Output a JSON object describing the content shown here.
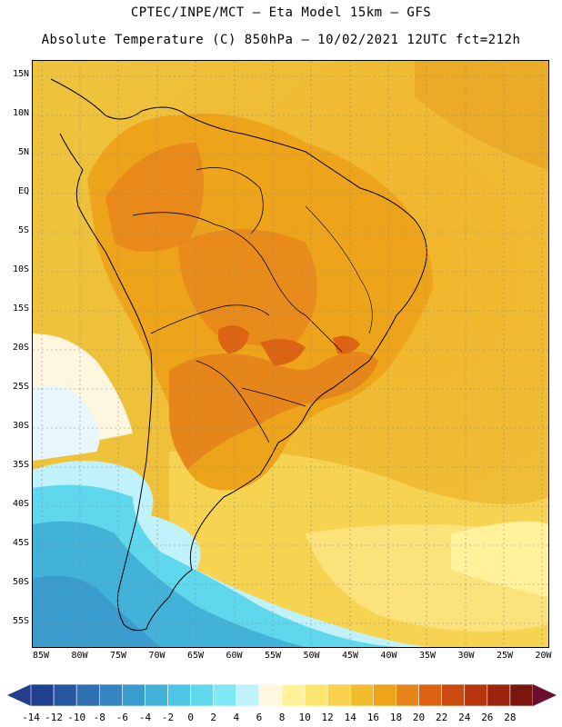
{
  "header": {
    "title_line1": "CPTEC/INPE/MCT –  Eta Model 15km – GFS",
    "title_line2": "Absolute Temperature (C) 850hPa – 10/02/2021 12UTC fct=212h"
  },
  "map": {
    "lat_labels": [
      "15N",
      "10N",
      "5N",
      "EQ",
      "5S",
      "10S",
      "15S",
      "20S",
      "25S",
      "30S",
      "35S",
      "40S",
      "45S",
      "50S",
      "55S"
    ],
    "lon_labels": [
      "85W",
      "80W",
      "75W",
      "70W",
      "65W",
      "60W",
      "55W",
      "50W",
      "45W",
      "40W",
      "35W",
      "30W",
      "25W",
      "20W"
    ],
    "lat_range": [
      -58,
      17
    ],
    "lon_range": [
      -86,
      -19
    ],
    "grid": "dotted"
  },
  "colorbar": {
    "labels": [
      "-14",
      "-12",
      "-10",
      "-8",
      "-6",
      "-4",
      "-2",
      "0",
      "2",
      "4",
      "6",
      "8",
      "10",
      "12",
      "14",
      "16",
      "18",
      "20",
      "22",
      "24",
      "26",
      "28"
    ],
    "colors": [
      "#1f3f8f",
      "#2756a0",
      "#2f6fb2",
      "#3485bf",
      "#3a9ccc",
      "#42b2d8",
      "#4cc6e4",
      "#5fd8ee",
      "#7fe8f5",
      "#bff2fb",
      "#fff6e0",
      "#fff29a",
      "#fde670",
      "#f8d24c",
      "#f2bd2c",
      "#eda41a",
      "#e6851a",
      "#dc6312",
      "#cd4a0f",
      "#b8360e",
      "#9c240d",
      "#7a160b"
    ]
  }
}
